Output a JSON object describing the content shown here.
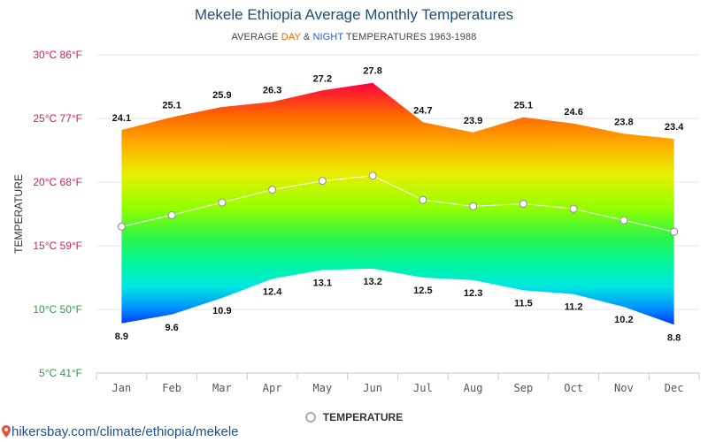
{
  "header": {
    "title": "Mekele Ethiopia Average Monthly Temperatures",
    "subtitle_prefix": "AVERAGE ",
    "subtitle_day": "DAY",
    "subtitle_amp": " & ",
    "subtitle_night": "NIGHT",
    "subtitle_suffix": " TEMPERATURES 1963-1988"
  },
  "legend": {
    "label": "TEMPERATURE"
  },
  "footer": {
    "url": "hikersbay.com/climate/ethiopia/mekele"
  },
  "colors": {
    "day_label": "#e86a00",
    "night_label": "#1f5bd6",
    "ytick_label": "#d81b60",
    "ytick_label_low": "#2e9e3e",
    "gradient_top": "#ff0040",
    "gradient_bottom": "#0030ff"
  },
  "chart_data": {
    "type": "area",
    "title": "Mekele Ethiopia Average Monthly Temperatures",
    "ylabel": "TEMPERATURE",
    "ylim": [
      5,
      30
    ],
    "y_ticks": [
      {
        "value": 30,
        "label": "30°C 86°F"
      },
      {
        "value": 25,
        "label": "25°C 77°F"
      },
      {
        "value": 20,
        "label": "20°C 68°F"
      },
      {
        "value": 15,
        "label": "15°C 59°F"
      },
      {
        "value": 10,
        "label": "10°C 50°F"
      },
      {
        "value": 5,
        "label": "5°C 41°F"
      }
    ],
    "categories": [
      "Jan",
      "Feb",
      "Mar",
      "Apr",
      "May",
      "Jun",
      "Jul",
      "Aug",
      "Sep",
      "Oct",
      "Nov",
      "Dec"
    ],
    "series": [
      {
        "name": "DAY",
        "values": [
          24.1,
          25.1,
          25.9,
          26.3,
          27.2,
          27.8,
          24.7,
          23.9,
          25.1,
          24.6,
          23.8,
          23.4
        ]
      },
      {
        "name": "NIGHT",
        "values": [
          8.9,
          9.6,
          10.9,
          12.4,
          13.1,
          13.2,
          12.5,
          12.3,
          11.5,
          11.2,
          10.2,
          8.8
        ]
      },
      {
        "name": "TEMPERATURE",
        "values": [
          16.5,
          17.4,
          18.4,
          19.4,
          20.1,
          20.5,
          18.6,
          18.1,
          18.3,
          17.9,
          17.0,
          16.1
        ]
      }
    ],
    "grid": true,
    "legend_position": "bottom-center"
  }
}
